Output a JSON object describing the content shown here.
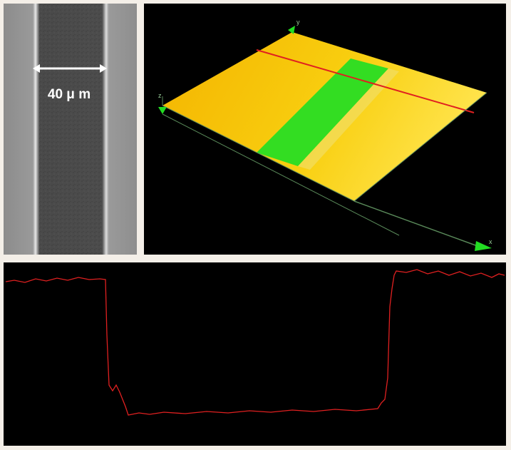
{
  "micrograph": {
    "width_label": "40 μ m"
  },
  "profile_3d": {
    "axis_y": "y",
    "axis_z": "z",
    "axis_x": "x"
  }
}
